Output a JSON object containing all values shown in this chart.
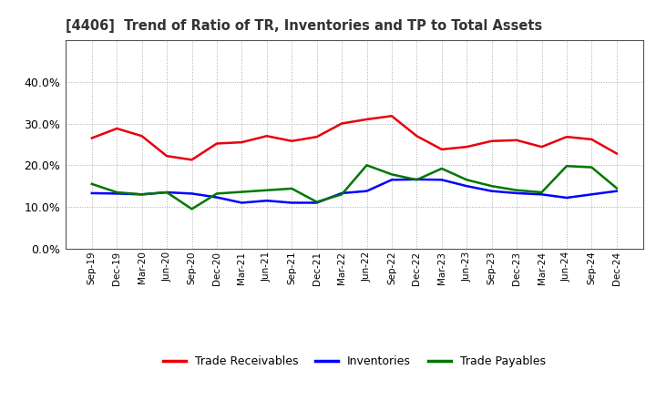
{
  "title": "[4406]  Trend of Ratio of TR, Inventories and TP to Total Assets",
  "x_labels": [
    "Sep-19",
    "Dec-19",
    "Mar-20",
    "Jun-20",
    "Sep-20",
    "Dec-20",
    "Mar-21",
    "Jun-21",
    "Sep-21",
    "Dec-21",
    "Mar-22",
    "Jun-22",
    "Sep-22",
    "Dec-22",
    "Mar-23",
    "Jun-23",
    "Sep-23",
    "Dec-23",
    "Mar-24",
    "Jun-24",
    "Sep-24",
    "Dec-24"
  ],
  "trade_receivables": [
    0.265,
    0.288,
    0.27,
    0.222,
    0.213,
    0.252,
    0.255,
    0.27,
    0.258,
    0.268,
    0.3,
    0.31,
    0.318,
    0.27,
    0.238,
    0.244,
    0.258,
    0.26,
    0.244,
    0.268,
    0.262,
    0.228
  ],
  "inventories": [
    0.133,
    0.132,
    0.13,
    0.135,
    0.132,
    0.123,
    0.11,
    0.115,
    0.11,
    0.11,
    0.133,
    0.138,
    0.165,
    0.166,
    0.165,
    0.15,
    0.138,
    0.133,
    0.13,
    0.122,
    0.13,
    0.138
  ],
  "trade_payables": [
    0.155,
    0.135,
    0.13,
    0.135,
    0.095,
    0.132,
    0.136,
    0.14,
    0.144,
    0.112,
    0.13,
    0.2,
    0.178,
    0.165,
    0.192,
    0.165,
    0.15,
    0.14,
    0.135,
    0.198,
    0.195,
    0.145
  ],
  "tr_color": "#e8000a",
  "inv_color": "#0000ff",
  "tp_color": "#007700",
  "bg_color": "#ffffff",
  "plot_bg_color": "#ffffff",
  "ylim": [
    0.0,
    0.5
  ],
  "yticks": [
    0.0,
    0.1,
    0.2,
    0.3,
    0.4
  ],
  "legend_labels": [
    "Trade Receivables",
    "Inventories",
    "Trade Payables"
  ],
  "line_width": 1.8,
  "title_color": "#333333"
}
